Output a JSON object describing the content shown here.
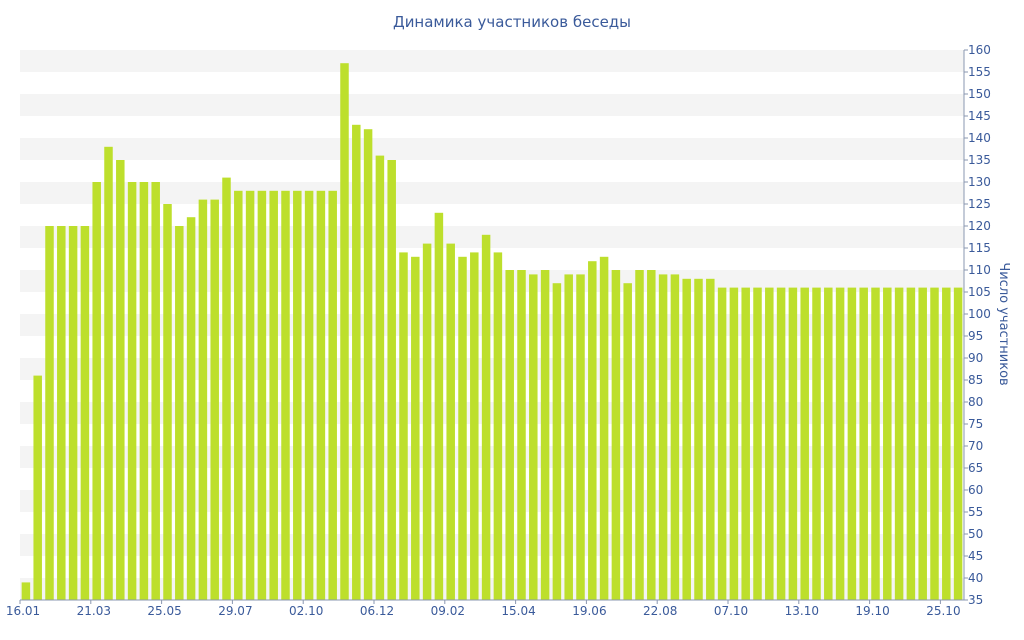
{
  "chart_data": {
    "type": "bar",
    "title": "Динамика участников беседы",
    "xlabel": "",
    "ylabel": "Число участников",
    "ylim": [
      35,
      160
    ],
    "y_ticks": [
      35,
      40,
      45,
      50,
      55,
      60,
      65,
      70,
      75,
      80,
      85,
      90,
      95,
      100,
      105,
      110,
      115,
      120,
      125,
      130,
      135,
      140,
      145,
      150,
      155,
      160
    ],
    "x_tick_labels": [
      "16.01",
      "21.03",
      "25.05",
      "29.07",
      "02.10",
      "06.12",
      "09.02",
      "15.04",
      "19.06",
      "22.08",
      "07.10",
      "13.10",
      "19.10",
      "25.10"
    ],
    "x_tick_bar_index": [
      0,
      6,
      12,
      18,
      24,
      30,
      36,
      42,
      48,
      54,
      60,
      66,
      72,
      78
    ],
    "values": [
      39,
      86,
      120,
      120,
      120,
      120,
      130,
      138,
      135,
      130,
      130,
      130,
      125,
      120,
      122,
      126,
      126,
      131,
      128,
      128,
      128,
      128,
      128,
      128,
      128,
      128,
      128,
      157,
      143,
      142,
      136,
      135,
      114,
      113,
      116,
      123,
      116,
      113,
      114,
      118,
      114,
      110,
      110,
      109,
      110,
      107,
      109,
      109,
      112,
      113,
      110,
      107,
      110,
      110,
      109,
      109,
      108,
      108,
      108,
      106,
      106,
      106,
      106,
      106,
      106,
      106,
      106,
      106,
      106,
      106,
      106,
      106,
      106,
      106,
      106,
      106,
      106,
      106,
      106,
      106
    ],
    "grid": "horizontal alternating bands",
    "colors": {
      "bar": "#bddf2c",
      "band": "#f4f4f4",
      "text": "#3a5a9a",
      "axis": "#8a97b0"
    }
  }
}
